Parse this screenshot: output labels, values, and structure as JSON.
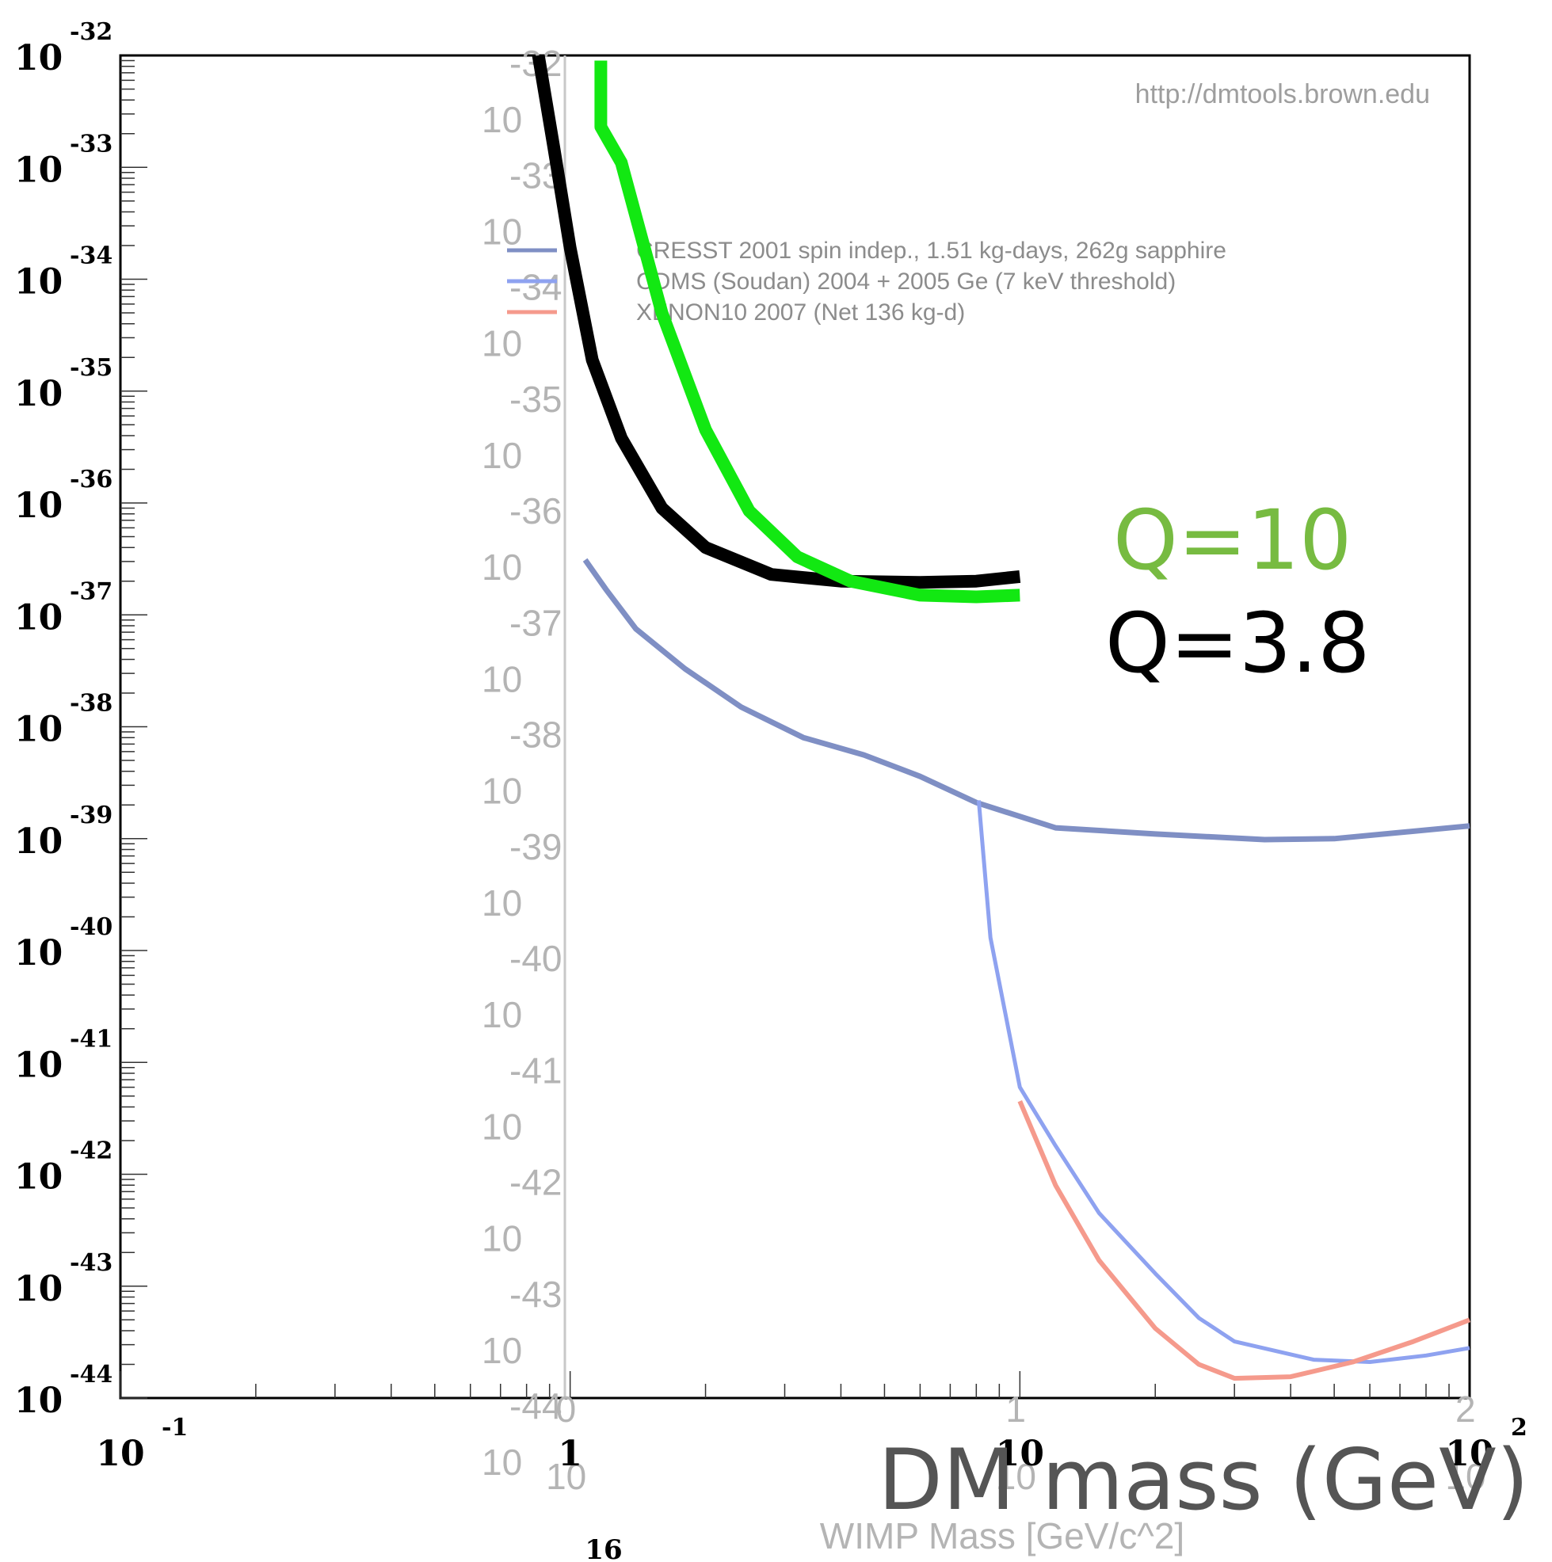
{
  "chart_data": {
    "type": "line",
    "x_scale": "log",
    "y_scale": "log",
    "xlim": [
      0.1,
      100
    ],
    "ylim": [
      1e-44,
      1e-32
    ],
    "xlabel": "DM mass (GeV)",
    "xlabel_background": "WIMP Mass [GeV/c^2]",
    "watermark_url": "http://dmtools.brown.edu",
    "page_number": "16",
    "x_ticks": [
      {
        "base": "10",
        "exp": "-1",
        "value": 0.1
      },
      {
        "base": "1",
        "exp": "",
        "value": 1
      },
      {
        "base": "10",
        "exp": "",
        "value": 10
      },
      {
        "base": "10",
        "exp": "2",
        "value": 100
      }
    ],
    "y_ticks": [
      {
        "base": "10",
        "exp": "-32"
      },
      {
        "base": "10",
        "exp": "-33"
      },
      {
        "base": "10",
        "exp": "-34"
      },
      {
        "base": "10",
        "exp": "-35"
      },
      {
        "base": "10",
        "exp": "-36"
      },
      {
        "base": "10",
        "exp": "-37"
      },
      {
        "base": "10",
        "exp": "-38"
      },
      {
        "base": "10",
        "exp": "-39"
      },
      {
        "base": "10",
        "exp": "-40"
      },
      {
        "base": "10",
        "exp": "-41"
      },
      {
        "base": "10",
        "exp": "-42"
      },
      {
        "base": "10",
        "exp": "-43"
      },
      {
        "base": "10",
        "exp": "-44"
      }
    ],
    "background_plot": {
      "y_ticks": [
        {
          "base": "10",
          "exp": "-32"
        },
        {
          "base": "10",
          "exp": "-33"
        },
        {
          "base": "10",
          "exp": "-34"
        },
        {
          "base": "10",
          "exp": "-35"
        },
        {
          "base": "10",
          "exp": "-36"
        },
        {
          "base": "10",
          "exp": "-37"
        },
        {
          "base": "10",
          "exp": "-38"
        },
        {
          "base": "10",
          "exp": "-39"
        },
        {
          "base": "10",
          "exp": "-40"
        },
        {
          "base": "10",
          "exp": "-41"
        },
        {
          "base": "10",
          "exp": "-42"
        },
        {
          "base": "10",
          "exp": "-43"
        },
        {
          "base": "10",
          "exp": "-44"
        }
      ],
      "x_ticks": [
        {
          "base": "10",
          "exp": "0"
        },
        {
          "base": "10",
          "exp": "1"
        },
        {
          "base": "10",
          "exp": "2"
        }
      ]
    },
    "legend": [
      {
        "name": "CRESST 2001 spin indep., 1.51 kg-days, 262g sapphire",
        "color": "#7f8fc4"
      },
      {
        "name": "CDMS (Soudan) 2004 + 2005 Ge (7 keV threshold)",
        "color": "#8ea2f0"
      },
      {
        "name": "XENON10 2007 (Net 136 kg-d)",
        "color": "#f59a8c"
      }
    ],
    "annotations": [
      {
        "text": "Q=10",
        "color": "#77bb41"
      },
      {
        "text": "Q=3.8",
        "color": "#000000"
      }
    ],
    "series": [
      {
        "name": "CRESST 2001 spin indep., 1.51 kg-days, 262g sapphire",
        "color": "#7f8fc4",
        "width": 7,
        "points": [
          [
            1.08,
            3.1e-37
          ],
          [
            1.2,
            1.7e-37
          ],
          [
            1.4,
            7.5e-38
          ],
          [
            1.8,
            3.3e-38
          ],
          [
            2.4,
            1.5e-38
          ],
          [
            3.3,
            8e-39
          ],
          [
            4.5,
            5.6e-39
          ],
          [
            6,
            3.6e-39
          ],
          [
            8,
            2.1e-39
          ],
          [
            12,
            1.25e-39
          ],
          [
            20,
            1.1e-39
          ],
          [
            35,
            9.8e-40
          ],
          [
            50,
            1e-39
          ],
          [
            100,
            1.3e-39
          ]
        ]
      },
      {
        "name": "CDMS (Soudan) 2004 + 2005 Ge (7 keV threshold)",
        "color": "#8ea2f0",
        "width": 5,
        "points": [
          [
            8.1,
            2.2e-39
          ],
          [
            8.6,
            1.3e-40
          ],
          [
            10,
            6e-42
          ],
          [
            12,
            1.8e-42
          ],
          [
            15,
            4.5e-43
          ],
          [
            20,
            1.3e-43
          ],
          [
            25,
            5.2e-44
          ],
          [
            30,
            3.2e-44
          ],
          [
            45,
            2.2e-44
          ],
          [
            60,
            2.1e-44
          ],
          [
            80,
            2.4e-44
          ],
          [
            100,
            2.8e-44
          ]
        ]
      },
      {
        "name": "XENON10 2007 (Net 136 kg-d)",
        "color": "#f59a8c",
        "width": 6,
        "points": [
          [
            10,
            4.5e-42
          ],
          [
            12,
            8e-43
          ],
          [
            15,
            1.7e-43
          ],
          [
            20,
            4.2e-44
          ],
          [
            25,
            2e-44
          ],
          [
            30,
            1.5e-44
          ],
          [
            40,
            1.55e-44
          ],
          [
            55,
            2.1e-44
          ],
          [
            75,
            3.2e-44
          ],
          [
            100,
            5e-44
          ]
        ]
      },
      {
        "name": "Q=3.8",
        "color": "#000000",
        "width": 16,
        "points": [
          [
            0.85,
            1e-32
          ],
          [
            0.92,
            1.5e-33
          ],
          [
            1.0,
            1.9e-34
          ],
          [
            1.12,
            1.9e-35
          ],
          [
            1.3,
            3.8e-36
          ],
          [
            1.6,
            9e-37
          ],
          [
            2.0,
            4e-37
          ],
          [
            2.8,
            2.3e-37
          ],
          [
            4,
            2e-37
          ],
          [
            6,
            1.95e-37
          ],
          [
            8,
            2e-37
          ],
          [
            10,
            2.2e-37
          ]
        ]
      },
      {
        "name": "Q=10",
        "color": "#12e812",
        "width": 16,
        "points": [
          [
            1.17,
            9e-33
          ],
          [
            1.17,
            2.3e-33
          ],
          [
            1.3,
            1.1e-33
          ],
          [
            1.6,
            5e-35
          ],
          [
            2.0,
            4.5e-36
          ],
          [
            2.5,
            8.5e-37
          ],
          [
            3.2,
            3.3e-37
          ],
          [
            4.2,
            2e-37
          ],
          [
            6,
            1.5e-37
          ],
          [
            8,
            1.45e-37
          ],
          [
            10,
            1.5e-37
          ]
        ]
      }
    ]
  }
}
